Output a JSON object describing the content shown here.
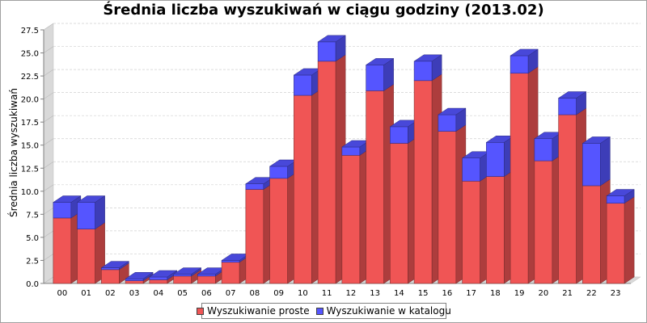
{
  "chart_data": {
    "type": "bar",
    "stacked": true,
    "three_d": true,
    "title": "Średnia liczba wyszukiwań w ciągu godziny (2013.02)",
    "xlabel": "",
    "ylabel": "Średnia liczba wyszukiwań",
    "ylim": [
      0,
      27.5
    ],
    "yticks": [
      "0.0",
      "2.5",
      "5.0",
      "7.5",
      "10.0",
      "12.5",
      "15.0",
      "17.5",
      "20.0",
      "22.5",
      "25.0",
      "27.5"
    ],
    "grid": true,
    "legend": "bottom",
    "categories": [
      "00",
      "01",
      "02",
      "03",
      "04",
      "05",
      "06",
      "07",
      "08",
      "09",
      "10",
      "11",
      "12",
      "13",
      "14",
      "15",
      "16",
      "17",
      "18",
      "19",
      "20",
      "21",
      "22",
      "23"
    ],
    "series": [
      {
        "name": "Wyszukiwanie proste",
        "color": "#f05555",
        "values": [
          7.1,
          5.9,
          1.5,
          0.3,
          0.4,
          0.8,
          0.8,
          2.3,
          10.2,
          11.4,
          20.4,
          24.1,
          13.9,
          20.9,
          15.2,
          22.0,
          16.5,
          11.1,
          11.6,
          22.8,
          13.3,
          18.3,
          10.6,
          8.7
        ]
      },
      {
        "name": "Wyszukiwanie w katalogu",
        "color": "#5555ff",
        "values": [
          1.7,
          2.9,
          0.2,
          0.2,
          0.3,
          0.2,
          0.2,
          0.2,
          0.6,
          1.3,
          2.2,
          2.1,
          0.9,
          2.8,
          1.8,
          2.1,
          1.8,
          2.5,
          3.7,
          1.9,
          2.4,
          1.8,
          4.6,
          0.8
        ]
      }
    ]
  }
}
